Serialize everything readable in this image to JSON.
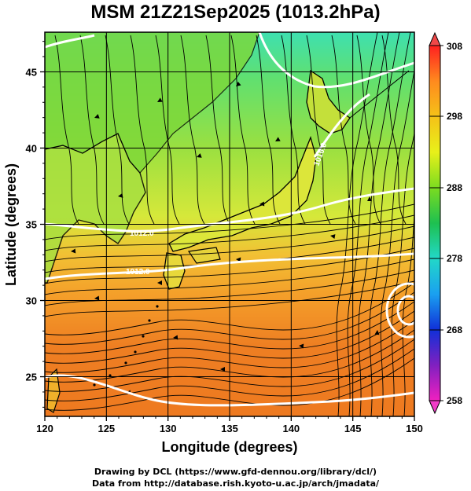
{
  "title": "MSM 21Z21Sep2025 (1013.2hPa)",
  "credits": {
    "line1": "Drawing by DCL (https://www.gfd-dennou.org/library/dcl/)",
    "line2": "Data from http://database.rish.kyoto-u.ac.jp/arch/jmadata/"
  },
  "map": {
    "x_axis": {
      "label": "Longitude (degrees)",
      "range": [
        120,
        150
      ],
      "ticks": [
        "120",
        "125",
        "130",
        "135",
        "140",
        "145",
        "150"
      ]
    },
    "y_axis": {
      "label": "Latitude  (degrees)",
      "range": [
        22.4,
        47.6
      ],
      "ticks": [
        "25",
        "30",
        "35",
        "40",
        "45"
      ]
    },
    "grid": true,
    "contour_labels": [
      "1012.0",
      "1012.0",
      "1016.0"
    ],
    "colors": {
      "land_coast": "#000000",
      "streamline": "#000000",
      "isobar": "#ffffff"
    }
  },
  "colorbar": {
    "top_label": "308",
    "bottom_label": "258",
    "tick_labels": [
      "298",
      "288",
      "278",
      "268"
    ],
    "stops": [
      "#ff2020",
      "#ff8a1e",
      "#f5c218",
      "#e8f01a",
      "#7cdc20",
      "#1ec050",
      "#22d8c8",
      "#1aa0f0",
      "#1030d8",
      "#8020c0",
      "#f020c0"
    ]
  }
}
